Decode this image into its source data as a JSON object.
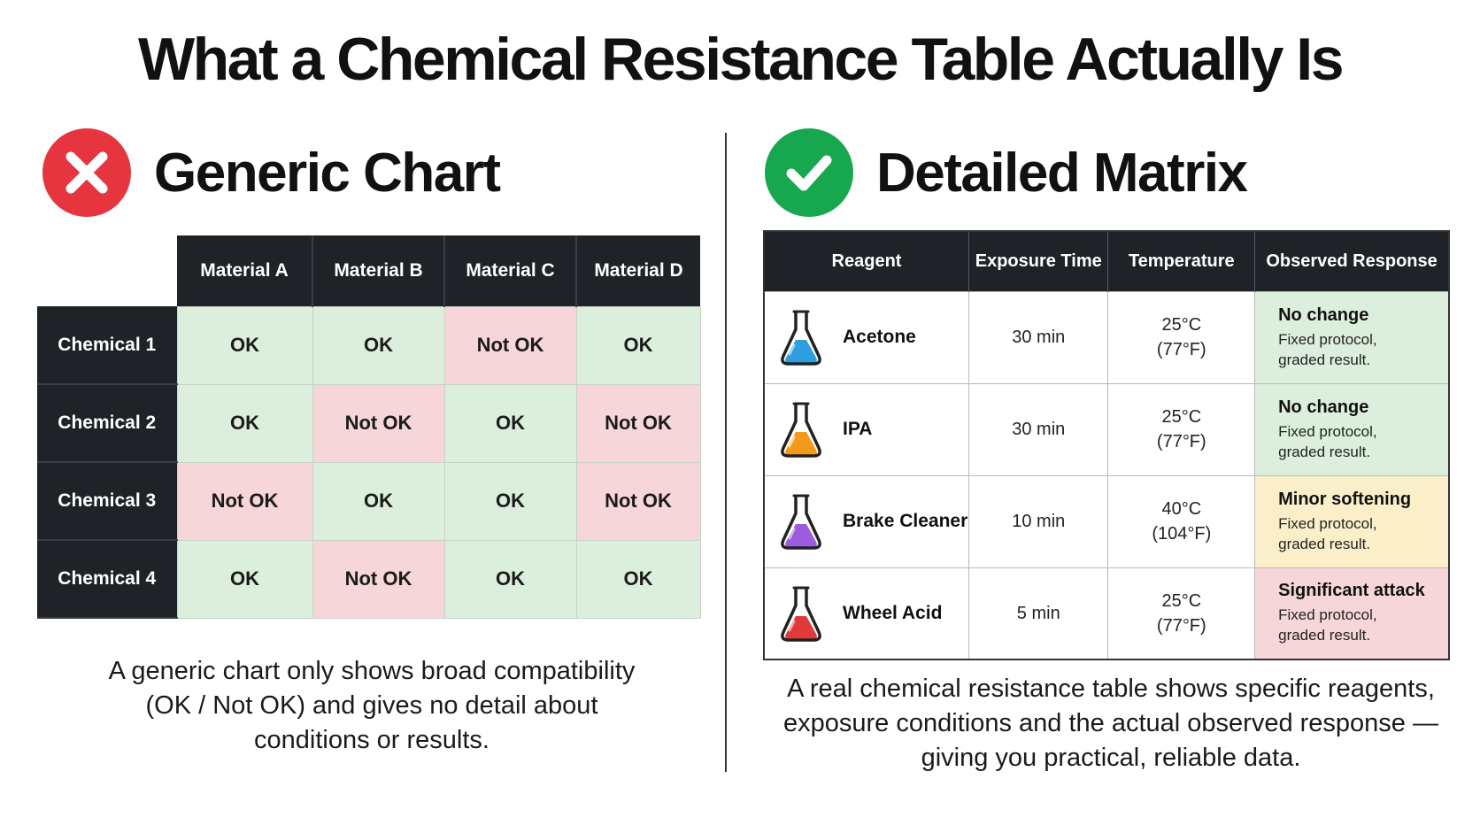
{
  "title": "What a Chemical Resistance Table  Actually Is",
  "left_panel": {
    "heading": "Generic Chart",
    "icon": "x-icon",
    "badge_color": "#e7353f",
    "columns": [
      "Material A",
      "Material B",
      "Material C",
      "Material D"
    ],
    "rows": [
      {
        "label": "Chemical 1",
        "cells": [
          "OK",
          "OK",
          "Not OK",
          "OK"
        ]
      },
      {
        "label": "Chemical 2",
        "cells": [
          "OK",
          "Not OK",
          "OK",
          "Not OK"
        ]
      },
      {
        "label": "Chemical 3",
        "cells": [
          "Not OK",
          "OK",
          "OK",
          "Not OK"
        ]
      },
      {
        "label": "Chemical 4",
        "cells": [
          "OK",
          "Not OK",
          "OK",
          "OK"
        ]
      }
    ],
    "caption": "A generic chart only shows broad compatibility (OK / Not OK) and gives no detail about conditions or results."
  },
  "right_panel": {
    "heading": "Detailed Matrix",
    "icon": "check-icon",
    "badge_color": "#17a84f",
    "columns": [
      "Reagent",
      "Exposure Time",
      "Temperature",
      "Observed Response"
    ],
    "rows": [
      {
        "reagent": "Acetone",
        "liquid_color": "#2d9fe0",
        "exposure": "30 min",
        "temp_c": "25°C",
        "temp_f": "(77°F)",
        "response": "No change",
        "detail_1": "Fixed protocol,",
        "detail_2": "graded result.",
        "status_color": "#dcefdd"
      },
      {
        "reagent": "IPA",
        "liquid_color": "#f39a1c",
        "exposure": "30 min",
        "temp_c": "25°C",
        "temp_f": "(77°F)",
        "response": "No change",
        "detail_1": "Fixed protocol,",
        "detail_2": "graded result.",
        "status_color": "#dcefdd"
      },
      {
        "reagent": "Brake Cleaner",
        "liquid_color": "#9b5ce0",
        "exposure": "10 min",
        "temp_c": "40°C",
        "temp_f": "(104°F)",
        "response": "Minor softening",
        "detail_1": "Fixed protocol,",
        "detail_2": "graded result.",
        "status_color": "#fbefc9"
      },
      {
        "reagent": "Wheel Acid",
        "liquid_color": "#e03a3a",
        "exposure": "5 min",
        "temp_c": "25°C",
        "temp_f": "(77°F)",
        "response": "Significant attack",
        "detail_1": "Fixed protocol,",
        "detail_2": "graded result.",
        "status_color": "#f6d6d8"
      }
    ],
    "caption": "A real chemical resistance table shows specific reagents, exposure conditions and the actual observed response — giving you practical, reliable data."
  },
  "colors": {
    "header_dark": "#1f2226",
    "ok_green": "#dcefdd",
    "not_ok_red": "#f6d6d8",
    "minor_yellow": "#fbefc9"
  }
}
